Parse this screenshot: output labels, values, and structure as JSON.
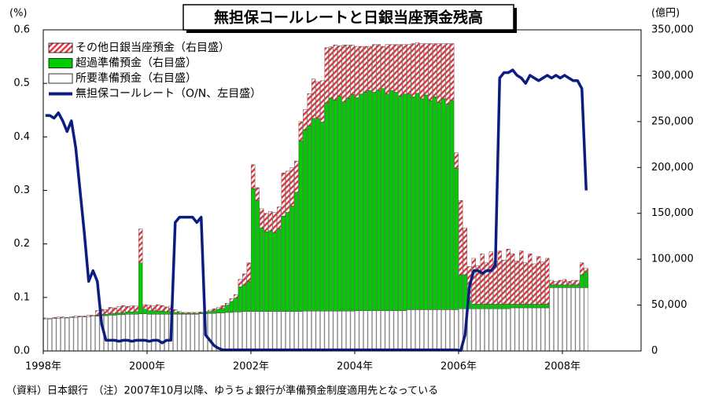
{
  "chart_data": {
    "type": "bar",
    "title": "無担保コールレートと日銀当座預金残高",
    "y_unit": "(%)",
    "y2_unit": "(億円)",
    "note": "（資料）日本銀行　（注）2007年10月以降、ゆうちょ銀行が準備預金制度適用先となっている",
    "categories": [
      "1998年",
      null,
      null,
      null,
      null,
      null,
      null,
      null,
      null,
      null,
      null,
      null,
      null,
      null,
      null,
      null,
      null,
      null,
      null,
      null,
      null,
      null,
      null,
      null,
      "2000年",
      null,
      null,
      null,
      null,
      null,
      null,
      null,
      null,
      null,
      null,
      null,
      null,
      null,
      null,
      null,
      null,
      null,
      null,
      null,
      null,
      null,
      null,
      null,
      "2002年",
      null,
      null,
      null,
      null,
      null,
      null,
      null,
      null,
      null,
      null,
      null,
      null,
      null,
      null,
      null,
      null,
      null,
      null,
      null,
      null,
      null,
      null,
      null,
      "2004年",
      null,
      null,
      null,
      null,
      null,
      null,
      null,
      null,
      null,
      null,
      null,
      null,
      null,
      null,
      null,
      null,
      null,
      null,
      null,
      null,
      null,
      null,
      null,
      "2006年",
      null,
      null,
      null,
      null,
      null,
      null,
      null,
      null,
      null,
      null,
      null,
      null,
      null,
      null,
      null,
      null,
      null,
      null,
      null,
      null,
      null,
      null,
      null,
      "2008年",
      null,
      null,
      null,
      null,
      null
    ],
    "ylim": [
      0,
      0.6
    ],
    "yticks": [
      {
        "value": 0,
        "label": "0.0"
      },
      0.1,
      0.2,
      0.3,
      0.4,
      0.5,
      0.6
    ],
    "y2lim": [
      0,
      350000
    ],
    "y2ticks": [
      0,
      {
        "value": 50000,
        "label": "50,000"
      },
      {
        "value": 100000,
        "label": "100,000"
      },
      {
        "value": 150000,
        "label": "150,000"
      },
      {
        "value": 200000,
        "label": "200,000"
      },
      {
        "value": 250000,
        "label": "250,000"
      },
      {
        "value": 300000,
        "label": "300,000"
      },
      {
        "value": 350000,
        "label": "350,000"
      }
    ],
    "stacked": true,
    "legend": "top-left",
    "series": [
      {
        "name": "その他日銀当座預金（右目盛）",
        "color": "#e8303a",
        "hatch": true,
        "axis": "y2",
        "values": [
          1000,
          500,
          1000,
          1500,
          1000,
          500,
          1000,
          1500,
          1000,
          1000,
          1500,
          1000,
          5000,
          6000,
          5000,
          7000,
          6000,
          7000,
          8000,
          6000,
          7000,
          6000,
          37000,
          5000,
          6000,
          5000,
          7000,
          6000,
          5000,
          6000,
          3000,
          1500,
          1000,
          1000,
          1000,
          1000,
          1000,
          1000,
          1500,
          2000,
          2000,
          3000,
          2000,
          3000,
          4000,
          8000,
          12000,
          20000,
          26000,
          14000,
          21000,
          20000,
          21000,
          22000,
          24000,
          47000,
          45000,
          42000,
          34000,
          21000,
          22000,
          35000,
          43000,
          40000,
          45000,
          60000,
          56000,
          60000,
          55000,
          62000,
          58000,
          54000,
          56000,
          52000,
          50000,
          48000,
          52000,
          50000,
          46000,
          54000,
          50000,
          52000,
          56000,
          54000,
          54000,
          58000,
          55000,
          60000,
          56000,
          62000,
          58000,
          64000,
          60000,
          66000,
          62000,
          17000,
          81000,
          51000,
          37000,
          50000,
          42000,
          55000,
          45000,
          57000,
          47000,
          58000,
          48000,
          60000,
          55000,
          47000,
          58000,
          45000,
          55000,
          44000,
          52000,
          46000,
          50000,
          5000,
          4000,
          5000,
          6000,
          4000,
          5000,
          5000,
          13000,
          4000
        ]
      },
      {
        "name": "超過準備預金（右目盛）",
        "color": "#00cc00",
        "axis": "y2",
        "values": [
          0,
          0,
          0,
          0,
          0,
          0,
          0,
          0,
          0,
          0,
          0,
          0,
          1000,
          1000,
          1500,
          1500,
          2000,
          2000,
          2000,
          2500,
          2500,
          3000,
          55500,
          5000,
          4000,
          4000,
          3500,
          3500,
          3000,
          3000,
          2000,
          1500,
          1000,
          1000,
          1000,
          1000,
          1000,
          1500,
          2000,
          3000,
          4000,
          5000,
          8000,
          12000,
          15000,
          27500,
          29000,
          33000,
          134000,
          121000,
          91000,
          87000,
          88000,
          86000,
          90000,
          104000,
          108000,
          115000,
          130000,
          186000,
          197500,
          202000,
          210000,
          210000,
          206000,
          227000,
          232000,
          230000,
          234000,
          228000,
          232000,
          236000,
          232000,
          236000,
          238000,
          240000,
          238000,
          240000,
          242000,
          236000,
          240000,
          238000,
          234000,
          236000,
          235000,
          232000,
          236000,
          230000,
          234000,
          228000,
          232000,
          226000,
          230000,
          224000,
          228000,
          154000,
          37000,
          37000,
          9000,
          5000,
          5000,
          5000,
          5000,
          5000,
          5000,
          5000,
          5000,
          5000,
          4000,
          4000,
          4000,
          4000,
          4000,
          4000,
          4000,
          4000,
          4000,
          3000,
          3000,
          3000,
          3000,
          3000,
          3000,
          3000,
          14000,
          17000
        ]
      },
      {
        "name": "所要準備預金（右目盛）",
        "color": "#ffffff",
        "axis": "y2",
        "values": [
          35000,
          35000,
          35500,
          35500,
          36000,
          36000,
          36500,
          36500,
          37000,
          37000,
          37500,
          38000,
          38000,
          38500,
          38500,
          39000,
          39000,
          39500,
          39500,
          40000,
          40000,
          40000,
          40500,
          40500,
          40000,
          40000,
          40000,
          40000,
          40000,
          40000,
          40000,
          40000,
          40000,
          40000,
          40000,
          40000,
          40500,
          40500,
          41000,
          41000,
          41500,
          41500,
          42000,
          42000,
          42500,
          42500,
          43000,
          43000,
          43000,
          43000,
          43000,
          43000,
          43000,
          43000,
          43000,
          43000,
          43000,
          43000,
          43000,
          43000,
          43500,
          43500,
          43500,
          43500,
          43500,
          43500,
          43500,
          43500,
          43500,
          43500,
          43500,
          43500,
          44000,
          44000,
          44000,
          44000,
          44000,
          44000,
          44000,
          44000,
          44000,
          44000,
          44000,
          44000,
          45000,
          45000,
          45000,
          45000,
          45000,
          45000,
          45000,
          45000,
          45000,
          45000,
          45000,
          45000,
          46000,
          46000,
          46000,
          46000,
          46000,
          46000,
          46000,
          46000,
          46000,
          46000,
          46000,
          46000,
          47000,
          47000,
          47000,
          47000,
          47000,
          47000,
          47000,
          47000,
          47000,
          69000,
          69000,
          69000,
          69000,
          69000,
          69000,
          69000,
          69000,
          69000
        ]
      },
      {
        "name": "無担保コールレート（O/N、左目盛）",
        "type": "line",
        "color": "#0c1c80",
        "values": [
          0.44,
          0.44,
          0.435,
          0.445,
          0.43,
          0.41,
          0.43,
          0.38,
          0.3,
          0.22,
          0.13,
          0.15,
          0.13,
          0.05,
          0.02,
          0.02,
          0.02,
          0.018,
          0.02,
          0.02,
          0.018,
          0.02,
          0.02,
          0.02,
          0.018,
          0.02,
          0.02,
          0.015,
          0.02,
          0.02,
          0.24,
          0.25,
          0.25,
          0.25,
          0.25,
          0.24,
          0.25,
          0.03,
          0.02,
          0.01,
          0.005,
          0.002,
          0.002,
          0.002,
          0.002,
          0.002,
          0.002,
          0.002,
          0.002,
          0.002,
          0.002,
          0.002,
          0.002,
          0.002,
          0.002,
          0.002,
          0.002,
          0.002,
          0.002,
          0.002,
          0.002,
          0.002,
          0.002,
          0.002,
          0.002,
          0.002,
          0.002,
          0.002,
          0.002,
          0.002,
          0.002,
          0.002,
          0.002,
          0.002,
          0.002,
          0.002,
          0.002,
          0.002,
          0.002,
          0.002,
          0.002,
          0.002,
          0.002,
          0.002,
          0.002,
          0.002,
          0.002,
          0.002,
          0.002,
          0.002,
          0.002,
          0.002,
          0.002,
          0.002,
          0.002,
          0.002,
          0.001,
          0.03,
          0.12,
          0.15,
          0.15,
          0.145,
          0.15,
          0.15,
          0.16,
          0.51,
          0.52,
          0.52,
          0.525,
          0.515,
          0.51,
          0.5,
          0.515,
          0.51,
          0.505,
          0.51,
          0.515,
          0.51,
          0.515,
          0.51,
          0.515,
          0.51,
          0.505,
          0.505,
          0.49,
          0.3
        ]
      }
    ]
  }
}
